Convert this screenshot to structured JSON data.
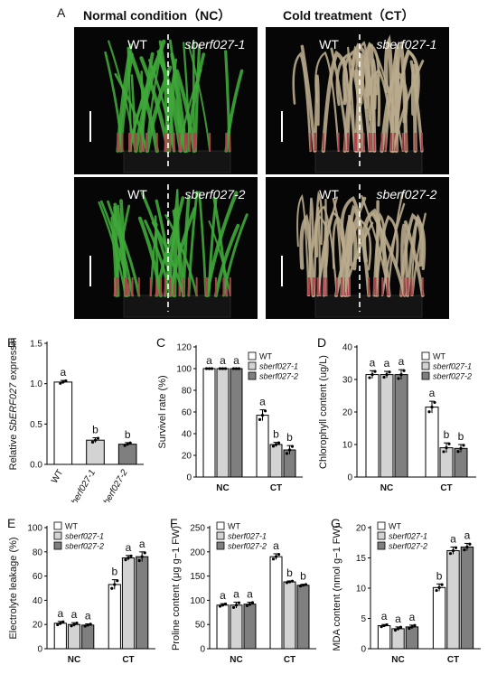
{
  "panel_a": {
    "letter": "A",
    "nc_title": "Normal condition（NC）",
    "ct_title": "Cold treatment（CT）",
    "photos": [
      {
        "left": "WT",
        "right": "sberf027-1",
        "condition": "normal"
      },
      {
        "left": "WT",
        "right": "sberf027-1",
        "condition": "cold"
      },
      {
        "left": "WT",
        "right": "sberf027-2",
        "condition": "normal"
      },
      {
        "left": "WT",
        "right": "sberf027-2",
        "condition": "cold"
      }
    ]
  },
  "colors": {
    "wt": "#ffffff",
    "mut1": "#d3d3d3",
    "mut2": "#7f7f7f",
    "healthy_leaf": "#3fa83a",
    "cold_leaf": "#b9ab8c"
  },
  "chart_data": [
    {
      "panel": "B",
      "type": "bar",
      "ylabel_pre": "Relative ",
      "ylabel_italic": "SbERF027",
      "ylabel_post": " expressin",
      "ylim": [
        0,
        1.5
      ],
      "yticks": [
        "0.0",
        "0.5",
        "1.0",
        "1.5"
      ],
      "categories": [
        "WT",
        "sberf027-1",
        "sberf027-2"
      ],
      "values": [
        1.02,
        0.3,
        0.25
      ],
      "errors": [
        0.02,
        0.03,
        0.02
      ],
      "letters": [
        "a",
        "b",
        "b"
      ]
    },
    {
      "panel": "C",
      "type": "bar",
      "ylabel": "Survivel rate (%)",
      "ylim": [
        0,
        120
      ],
      "yticks": [
        "0",
        "20",
        "40",
        "60",
        "80",
        "100",
        "120"
      ],
      "groups": [
        "NC",
        "CT"
      ],
      "legend": [
        "WT",
        "sberf027-1",
        "sberf027-2"
      ],
      "series": [
        {
          "name": "WT",
          "values": [
            100,
            57
          ],
          "errors": [
            0,
            5
          ],
          "letters": [
            "a",
            "a"
          ]
        },
        {
          "name": "sberf027-1",
          "values": [
            100,
            30
          ],
          "errors": [
            0,
            2
          ],
          "letters": [
            "a",
            "b"
          ]
        },
        {
          "name": "sberf027-2",
          "values": [
            100,
            25
          ],
          "errors": [
            0,
            4
          ],
          "letters": [
            "a",
            "b"
          ]
        }
      ]
    },
    {
      "panel": "D",
      "type": "bar",
      "ylabel": "Chlorophyll content (ug/L)",
      "ylim": [
        0,
        40
      ],
      "yticks": [
        "0",
        "10",
        "20",
        "30",
        "40"
      ],
      "groups": [
        "NC",
        "CT"
      ],
      "legend": [
        "WT",
        "sberf027-1",
        "sberf027-2"
      ],
      "series": [
        {
          "name": "WT",
          "values": [
            31.5,
            21.5
          ],
          "errors": [
            1.2,
            1.8
          ],
          "letters": [
            "a",
            "a"
          ]
        },
        {
          "name": "sberf027-1",
          "values": [
            31.5,
            9
          ],
          "errors": [
            1,
            1.5
          ],
          "letters": [
            "a",
            "b"
          ]
        },
        {
          "name": "sberf027-2",
          "values": [
            31.5,
            8.8
          ],
          "errors": [
            1.5,
            1.2
          ],
          "letters": [
            "a",
            "b"
          ]
        }
      ]
    },
    {
      "panel": "E",
      "type": "bar",
      "ylabel": "Electrolyte leakage (%)",
      "ylim": [
        0,
        100
      ],
      "yticks": [
        "0",
        "20",
        "40",
        "60",
        "80",
        "100"
      ],
      "groups": [
        "NC",
        "CT"
      ],
      "legend": [
        "WT",
        "sberf027-1",
        "sberf027-2"
      ],
      "series": [
        {
          "name": "WT",
          "values": [
            21,
            53
          ],
          "errors": [
            1.5,
            4
          ],
          "letters": [
            "a",
            "b"
          ]
        },
        {
          "name": "sberf027-1",
          "values": [
            20,
            75
          ],
          "errors": [
            1.5,
            2
          ],
          "letters": [
            "a",
            "a"
          ]
        },
        {
          "name": "sberf027-2",
          "values": [
            19.5,
            76
          ],
          "errors": [
            1,
            4
          ],
          "letters": [
            "a",
            "a"
          ]
        }
      ]
    },
    {
      "panel": "F",
      "type": "bar",
      "ylabel": "Proline content (μg g−1 FW)",
      "ylim": [
        0,
        250
      ],
      "yticks": [
        "0",
        "50",
        "100",
        "150",
        "200",
        "250"
      ],
      "groups": [
        "NC",
        "CT"
      ],
      "legend": [
        "WT",
        "sberf027-1",
        "sberf027-2"
      ],
      "series": [
        {
          "name": "WT",
          "values": [
            90,
            190
          ],
          "errors": [
            3,
            6
          ],
          "letters": [
            "a",
            "a"
          ]
        },
        {
          "name": "sberf027-1",
          "values": [
            90,
            138
          ],
          "errors": [
            6,
            2
          ],
          "letters": [
            "a",
            "b"
          ]
        },
        {
          "name": "sberf027-2",
          "values": [
            92,
            131
          ],
          "errors": [
            4,
            2
          ],
          "letters": [
            "a",
            "b"
          ]
        }
      ]
    },
    {
      "panel": "G",
      "type": "bar",
      "ylabel": "MDA content (nmol g−1 FW)",
      "ylim": [
        0,
        20
      ],
      "yticks": [
        "0",
        "5",
        "10",
        "15",
        "20"
      ],
      "groups": [
        "NC",
        "CT"
      ],
      "legend": [
        "WT",
        "sberf027-1",
        "sberf027-2"
      ],
      "series": [
        {
          "name": "WT",
          "values": [
            3.8,
            10.1
          ],
          "errors": [
            0.2,
            0.6
          ],
          "letters": [
            "a",
            "b"
          ]
        },
        {
          "name": "sberf027-1",
          "values": [
            3.3,
            16.2
          ],
          "errors": [
            0.3,
            0.6
          ],
          "letters": [
            "a",
            "a"
          ]
        },
        {
          "name": "sberf027-2",
          "values": [
            3.6,
            16.8
          ],
          "errors": [
            0.3,
            0.6
          ],
          "letters": [
            "a",
            "a"
          ]
        }
      ]
    }
  ]
}
